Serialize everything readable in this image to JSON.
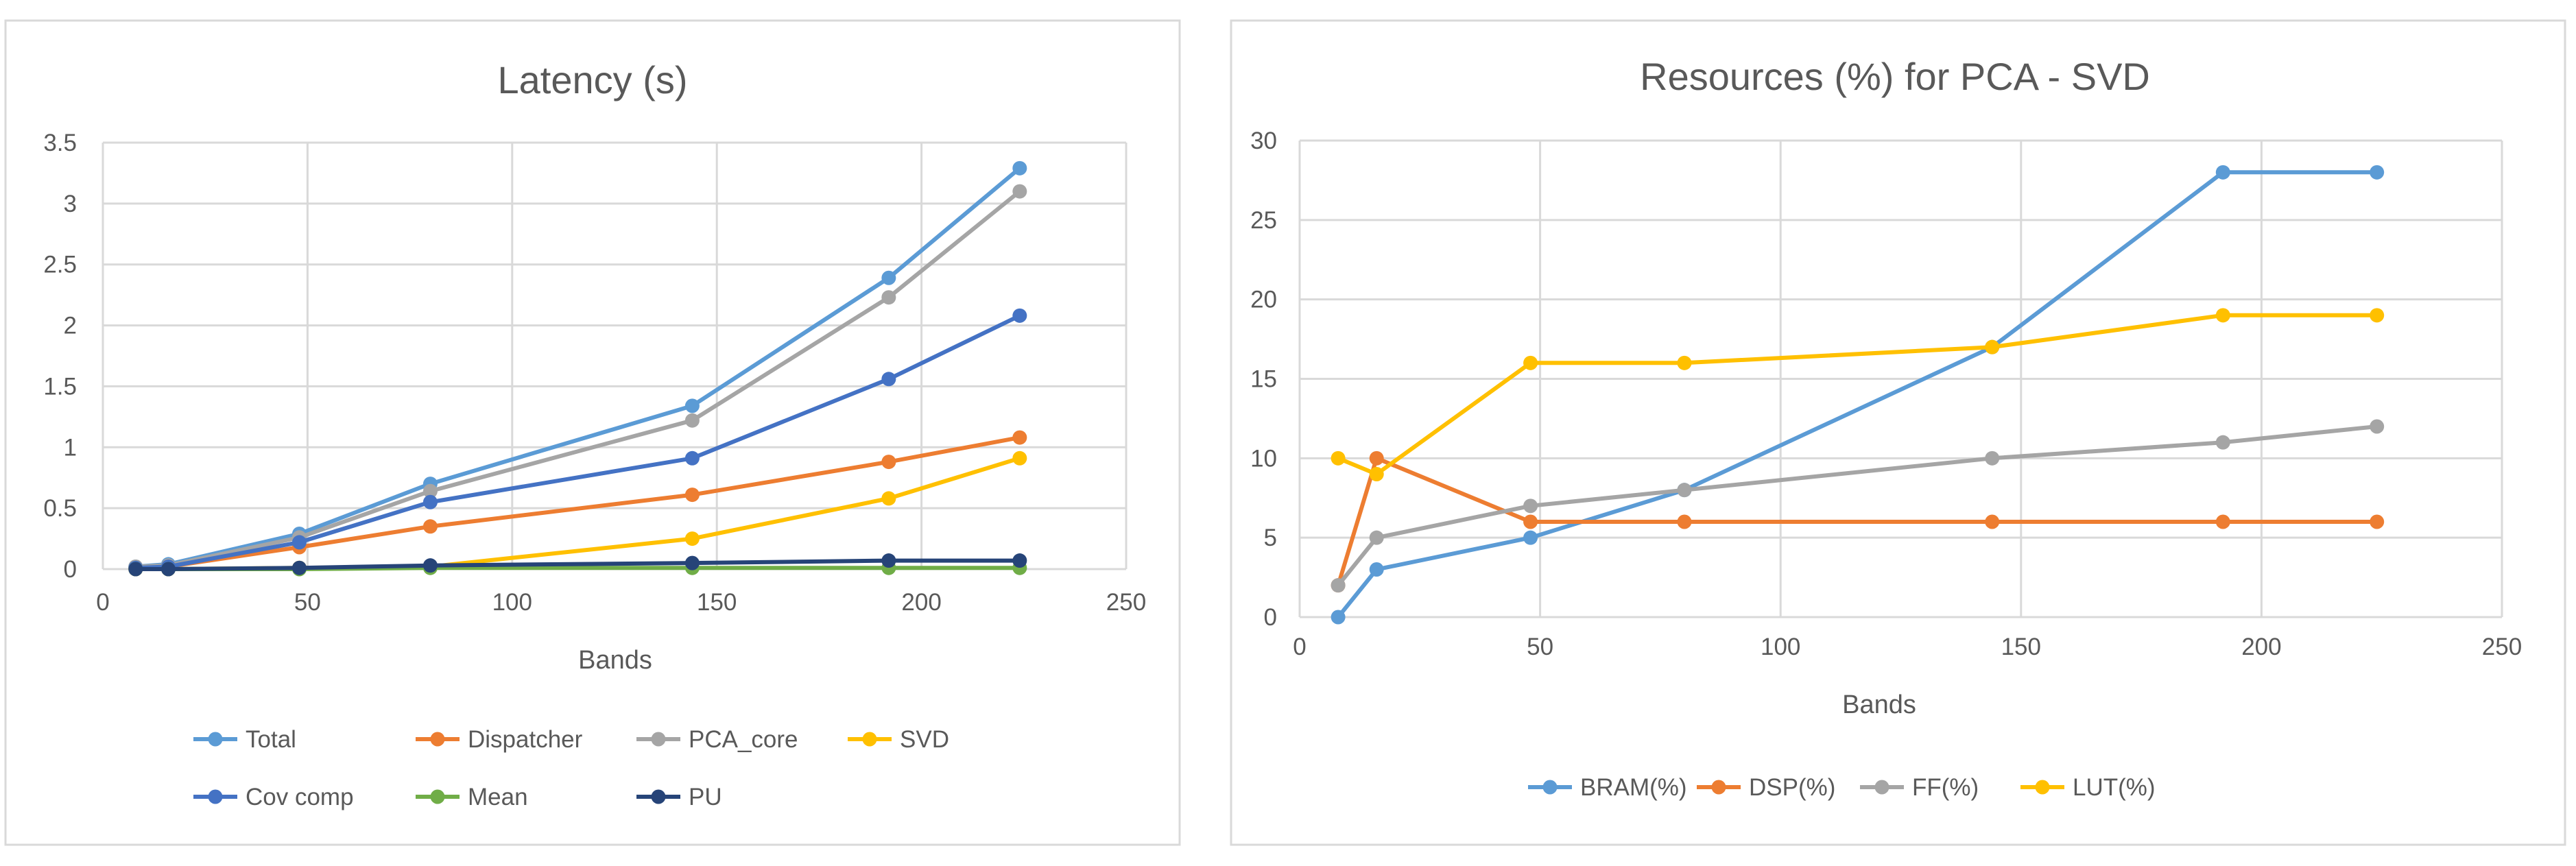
{
  "chart_data": [
    {
      "type": "line",
      "title": "Latency (s)",
      "xlabel": "Bands",
      "ylabel": "",
      "xlim": [
        0,
        250
      ],
      "ylim": [
        0,
        3.5
      ],
      "x_ticks": [
        "0",
        "50",
        "100",
        "150",
        "200",
        "250"
      ],
      "y_ticks": [
        "0",
        "0.5",
        "1",
        "1.5",
        "2",
        "2.5",
        "3",
        "3.5"
      ],
      "grid": "vertical and horizontal",
      "legend_position": "bottom",
      "x": [
        8,
        16,
        48,
        80,
        144,
        192,
        224
      ],
      "series": [
        {
          "name": "Total",
          "color": "#5b9bd5",
          "values": [
            0.02,
            0.04,
            0.29,
            0.7,
            1.34,
            2.39,
            3.29
          ]
        },
        {
          "name": "Dispatcher",
          "color": "#ed7d31",
          "values": [
            0.01,
            0.02,
            0.18,
            0.35,
            0.61,
            0.88,
            1.08
          ]
        },
        {
          "name": "PCA_core",
          "color": "#a5a5a5",
          "values": [
            0.02,
            0.03,
            0.26,
            0.64,
            1.22,
            2.23,
            3.1
          ]
        },
        {
          "name": "SVD",
          "color": "#ffc000",
          "values": [
            0.0,
            0.0,
            0.01,
            0.02,
            0.25,
            0.58,
            0.91
          ]
        },
        {
          "name": "Cov comp",
          "color": "#4472c4",
          "values": [
            0.01,
            0.02,
            0.22,
            0.55,
            0.91,
            1.56,
            2.08
          ]
        },
        {
          "name": "Mean",
          "color": "#70ad47",
          "values": [
            0.0,
            0.0,
            0.0,
            0.01,
            0.01,
            0.01,
            0.01
          ]
        },
        {
          "name": "PU",
          "color": "#264478",
          "values": [
            0.0,
            0.0,
            0.01,
            0.03,
            0.05,
            0.07,
            0.07
          ]
        }
      ]
    },
    {
      "type": "line",
      "title": "Resources (%) for PCA - SVD",
      "xlabel": "Bands",
      "ylabel": "",
      "xlim": [
        0,
        250
      ],
      "ylim": [
        0,
        30
      ],
      "x_ticks": [
        "0",
        "50",
        "100",
        "150",
        "200",
        "250"
      ],
      "y_ticks": [
        "0",
        "5",
        "10",
        "15",
        "20",
        "25",
        "30"
      ],
      "grid": "vertical and horizontal",
      "legend_position": "bottom",
      "x": [
        8,
        16,
        48,
        80,
        144,
        192,
        224
      ],
      "series": [
        {
          "name": "BRAM(%)",
          "color": "#5b9bd5",
          "values": [
            0,
            3,
            5,
            8,
            17,
            28,
            28
          ]
        },
        {
          "name": "DSP(%)",
          "color": "#ed7d31",
          "values": [
            2,
            10,
            6,
            6,
            6,
            6,
            6
          ]
        },
        {
          "name": "FF(%)",
          "color": "#a5a5a5",
          "values": [
            2,
            5,
            7,
            8,
            10,
            11,
            12
          ]
        },
        {
          "name": "LUT(%)",
          "color": "#ffc000",
          "values": [
            10,
            9,
            16,
            16,
            17,
            19,
            19
          ]
        }
      ]
    }
  ]
}
